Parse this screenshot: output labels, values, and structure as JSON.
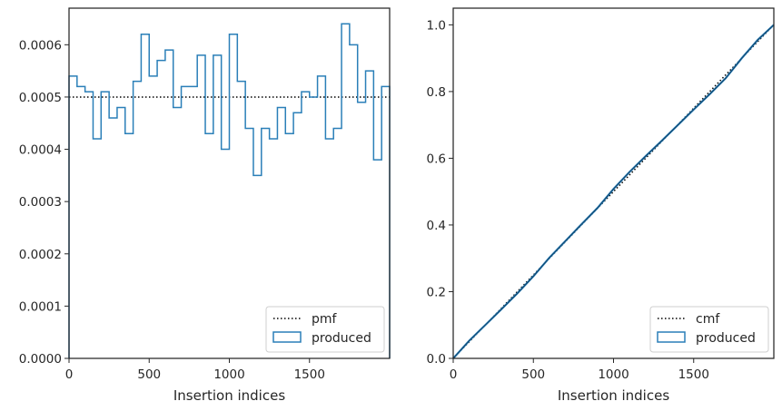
{
  "chart_data": [
    {
      "type": "step-histogram",
      "xlabel": "Insertion indices",
      "ylabel": "",
      "xlim": [
        0,
        2000
      ],
      "ylim": [
        0,
        0.00067
      ],
      "xticks": [
        0,
        500,
        1000,
        1500
      ],
      "xtick_labels": [
        "0",
        "500",
        "1000",
        "1500"
      ],
      "yticks": [
        0,
        0.0001,
        0.0002,
        0.0003,
        0.0004,
        0.0005,
        0.0006
      ],
      "ytick_labels": [
        "0.0000",
        "0.0001",
        "0.0002",
        "0.0003",
        "0.0004",
        "0.0005",
        "0.0006"
      ],
      "bin_edges": [
        0,
        50,
        100,
        150,
        200,
        250,
        300,
        350,
        400,
        450,
        500,
        550,
        600,
        650,
        700,
        750,
        800,
        850,
        900,
        950,
        1000,
        1050,
        1100,
        1150,
        1200,
        1250,
        1300,
        1350,
        1400,
        1450,
        1500,
        1550,
        1600,
        1650,
        1700,
        1750,
        1800,
        1850,
        1900,
        1950,
        2000
      ],
      "series": [
        {
          "name": "pmf",
          "style": "dotted",
          "color": "#000000",
          "x": [
            0,
            2000
          ],
          "values": [
            0.0005,
            0.0005
          ]
        },
        {
          "name": "produced",
          "style": "step",
          "color": "#2a7fb8",
          "values": [
            0.00054,
            0.00052,
            0.00051,
            0.00042,
            0.00051,
            0.00046,
            0.00048,
            0.00043,
            0.00053,
            0.00062,
            0.00054,
            0.00057,
            0.00059,
            0.00048,
            0.00052,
            0.00052,
            0.00058,
            0.00043,
            0.00058,
            0.0004,
            0.00062,
            0.00053,
            0.00044,
            0.00035,
            0.00044,
            0.00042,
            0.00048,
            0.00043,
            0.00047,
            0.00051,
            0.0005,
            0.00054,
            0.00042,
            0.00044,
            0.00064,
            0.0006,
            0.00049,
            0.00055,
            0.00038,
            0.00052
          ]
        }
      ],
      "legend": {
        "placement": "lower-right",
        "entries": [
          "pmf",
          "produced"
        ]
      }
    },
    {
      "type": "step-cumulative",
      "xlabel": "Insertion indices",
      "ylabel": "",
      "xlim": [
        0,
        2000
      ],
      "ylim": [
        0,
        1.05
      ],
      "xticks": [
        0,
        500,
        1000,
        1500
      ],
      "xtick_labels": [
        "0",
        "500",
        "1000",
        "1500"
      ],
      "yticks": [
        0,
        0.2,
        0.4,
        0.6,
        0.8,
        1.0
      ],
      "ytick_labels": [
        "0.0",
        "0.2",
        "0.4",
        "0.6",
        "0.8",
        "1.0"
      ],
      "series": [
        {
          "name": "cmf",
          "style": "dotted",
          "color": "#000000",
          "x": [
            0,
            2000
          ],
          "values": [
            0,
            1
          ]
        },
        {
          "name": "produced",
          "style": "step",
          "color": "#2a7fb8",
          "x": [
            0,
            100,
            200,
            300,
            400,
            500,
            600,
            700,
            800,
            900,
            1000,
            1100,
            1200,
            1300,
            1400,
            1500,
            1600,
            1700,
            1800,
            1900,
            2000
          ],
          "values": [
            0,
            0.053,
            0.1,
            0.147,
            0.195,
            0.246,
            0.302,
            0.352,
            0.402,
            0.451,
            0.508,
            0.559,
            0.606,
            0.652,
            0.699,
            0.746,
            0.792,
            0.84,
            0.9,
            0.955,
            1.0
          ]
        }
      ],
      "legend": {
        "placement": "lower-right",
        "entries": [
          "cmf",
          "produced"
        ]
      }
    }
  ]
}
